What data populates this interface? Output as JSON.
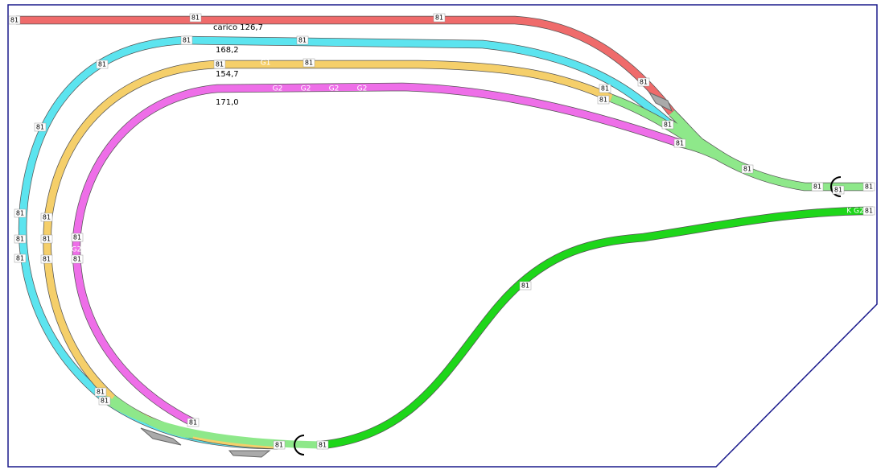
{
  "length_labels": [
    "carico 126,7",
    "168,2",
    "154,7",
    "171,0"
  ],
  "markers": [
    "81",
    "81",
    "81",
    "81",
    "81",
    "81",
    "81",
    "81",
    "81",
    "81",
    "81",
    "81",
    "81",
    "81",
    "81",
    "81",
    "81",
    "81",
    "81",
    "81",
    "81",
    "81",
    "81",
    "81",
    "81",
    "81",
    "81",
    "81",
    "81",
    "81",
    "81",
    "81",
    "81"
  ],
  "track_labels": [
    "G1",
    "G2",
    "G2",
    "G2",
    "G2",
    "G2",
    "K G2"
  ]
}
